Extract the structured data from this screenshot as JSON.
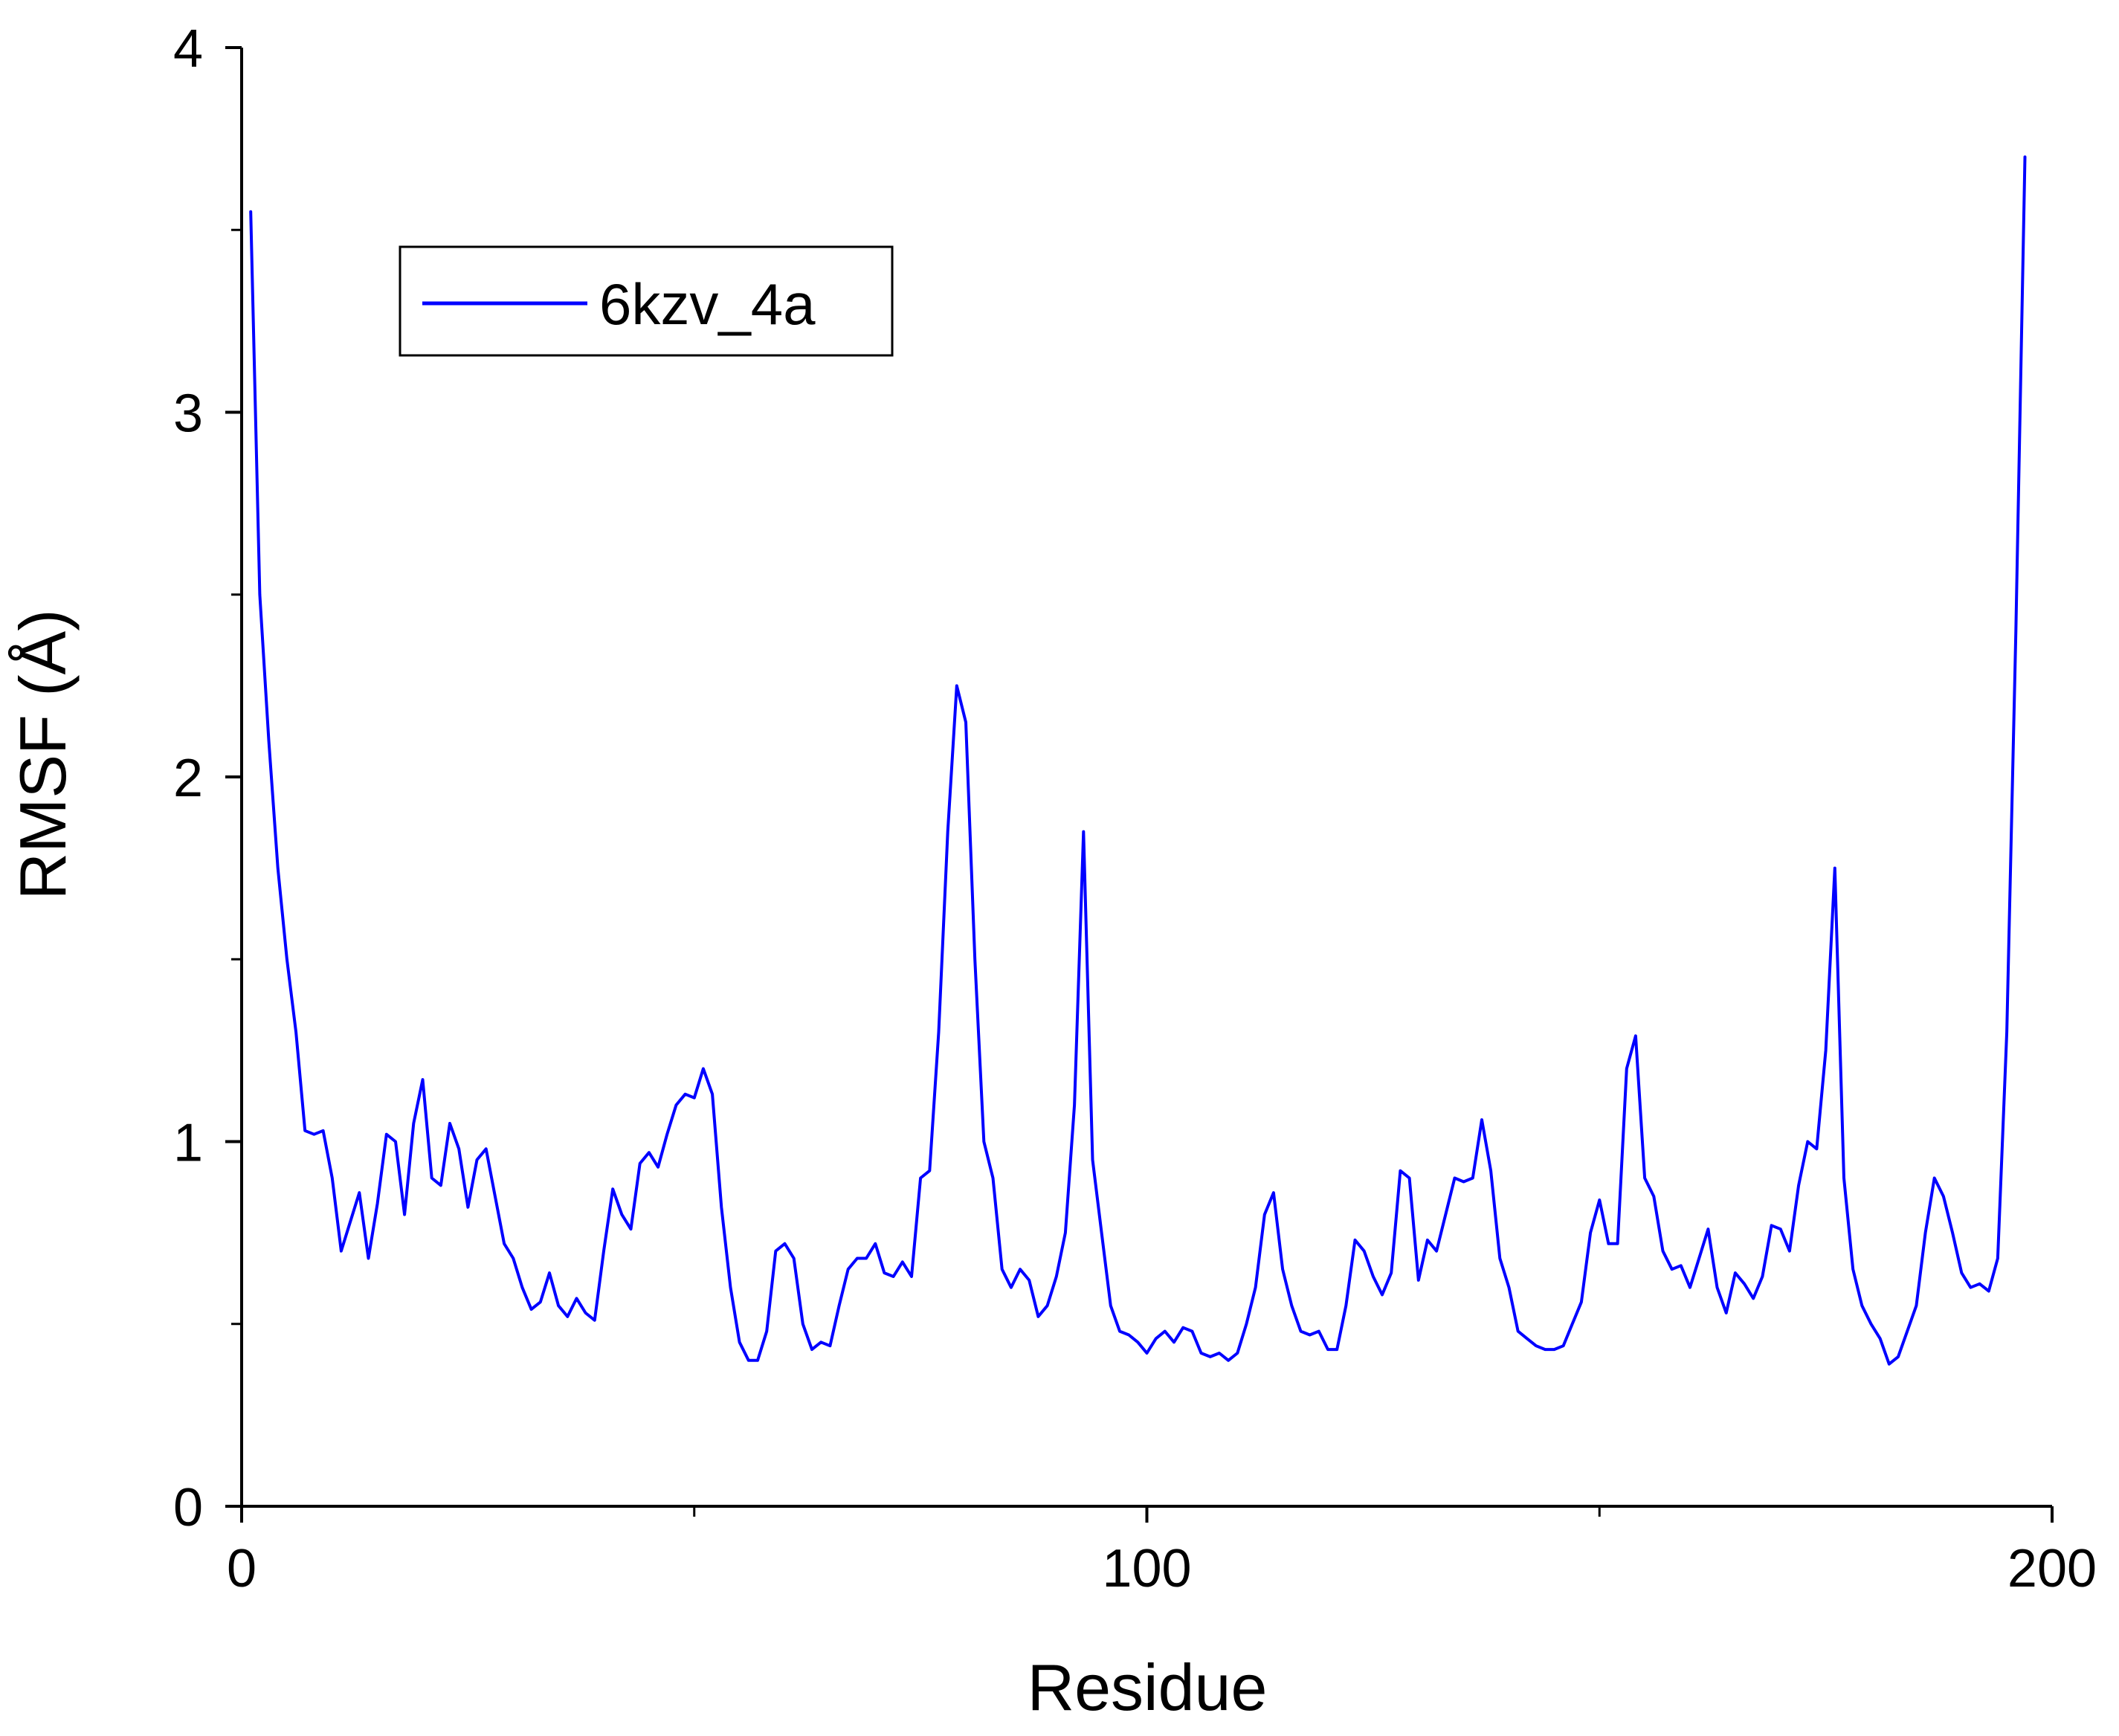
{
  "chart_data": {
    "type": "line",
    "xlabel": "Residue",
    "ylabel": "RMSF (Å)",
    "xlim": [
      0,
      200
    ],
    "ylim": [
      0,
      4
    ],
    "xticks": [
      0,
      100,
      200
    ],
    "xminor": [
      50,
      150
    ],
    "yticks": [
      0,
      1,
      2,
      3,
      4
    ],
    "yminor": [
      0.5,
      1.5,
      2.5,
      3.5
    ],
    "grid": false,
    "legend_position": "top-left",
    "series": [
      {
        "name": "6kzv_4a",
        "color": "#0000ff",
        "points": [
          [
            1,
            3.55
          ],
          [
            2,
            2.5
          ],
          [
            3,
            2.1
          ],
          [
            4,
            1.75
          ],
          [
            5,
            1.5
          ],
          [
            6,
            1.3
          ],
          [
            7,
            1.03
          ],
          [
            8,
            1.02
          ],
          [
            9,
            1.03
          ],
          [
            10,
            0.9
          ],
          [
            11,
            0.7
          ],
          [
            12,
            0.78
          ],
          [
            13,
            0.86
          ],
          [
            14,
            0.68
          ],
          [
            15,
            0.83
          ],
          [
            16,
            1.02
          ],
          [
            17,
            1.0
          ],
          [
            18,
            0.8
          ],
          [
            19,
            1.05
          ],
          [
            20,
            1.17
          ],
          [
            21,
            0.9
          ],
          [
            22,
            0.88
          ],
          [
            23,
            1.05
          ],
          [
            24,
            0.98
          ],
          [
            25,
            0.82
          ],
          [
            26,
            0.95
          ],
          [
            27,
            0.98
          ],
          [
            28,
            0.85
          ],
          [
            29,
            0.72
          ],
          [
            30,
            0.68
          ],
          [
            31,
            0.6
          ],
          [
            32,
            0.54
          ],
          [
            33,
            0.56
          ],
          [
            34,
            0.64
          ],
          [
            35,
            0.55
          ],
          [
            36,
            0.52
          ],
          [
            37,
            0.57
          ],
          [
            38,
            0.53
          ],
          [
            39,
            0.51
          ],
          [
            40,
            0.7
          ],
          [
            41,
            0.87
          ],
          [
            42,
            0.8
          ],
          [
            43,
            0.76
          ],
          [
            44,
            0.94
          ],
          [
            45,
            0.97
          ],
          [
            46,
            0.93
          ],
          [
            47,
            1.02
          ],
          [
            48,
            1.1
          ],
          [
            49,
            1.13
          ],
          [
            50,
            1.12
          ],
          [
            51,
            1.2
          ],
          [
            52,
            1.13
          ],
          [
            53,
            0.82
          ],
          [
            54,
            0.6
          ],
          [
            55,
            0.45
          ],
          [
            56,
            0.4
          ],
          [
            57,
            0.4
          ],
          [
            58,
            0.48
          ],
          [
            59,
            0.7
          ],
          [
            60,
            0.72
          ],
          [
            61,
            0.68
          ],
          [
            62,
            0.5
          ],
          [
            63,
            0.43
          ],
          [
            64,
            0.45
          ],
          [
            65,
            0.44
          ],
          [
            66,
            0.55
          ],
          [
            67,
            0.65
          ],
          [
            68,
            0.68
          ],
          [
            69,
            0.68
          ],
          [
            70,
            0.72
          ],
          [
            71,
            0.64
          ],
          [
            72,
            0.63
          ],
          [
            73,
            0.67
          ],
          [
            74,
            0.63
          ],
          [
            75,
            0.9
          ],
          [
            76,
            0.92
          ],
          [
            77,
            1.3
          ],
          [
            78,
            1.85
          ],
          [
            79,
            2.25
          ],
          [
            80,
            2.15
          ],
          [
            81,
            1.5
          ],
          [
            82,
            1.0
          ],
          [
            83,
            0.9
          ],
          [
            84,
            0.65
          ],
          [
            85,
            0.6
          ],
          [
            86,
            0.65
          ],
          [
            87,
            0.62
          ],
          [
            88,
            0.52
          ],
          [
            89,
            0.55
          ],
          [
            90,
            0.63
          ],
          [
            91,
            0.75
          ],
          [
            92,
            1.1
          ],
          [
            93,
            1.85
          ],
          [
            94,
            0.95
          ],
          [
            95,
            0.75
          ],
          [
            96,
            0.55
          ],
          [
            97,
            0.48
          ],
          [
            98,
            0.47
          ],
          [
            99,
            0.45
          ],
          [
            100,
            0.42
          ],
          [
            101,
            0.46
          ],
          [
            102,
            0.48
          ],
          [
            103,
            0.45
          ],
          [
            104,
            0.49
          ],
          [
            105,
            0.48
          ],
          [
            106,
            0.42
          ],
          [
            107,
            0.41
          ],
          [
            108,
            0.42
          ],
          [
            109,
            0.4
          ],
          [
            110,
            0.42
          ],
          [
            111,
            0.5
          ],
          [
            112,
            0.6
          ],
          [
            113,
            0.8
          ],
          [
            114,
            0.86
          ],
          [
            115,
            0.65
          ],
          [
            116,
            0.55
          ],
          [
            117,
            0.48
          ],
          [
            118,
            0.47
          ],
          [
            119,
            0.48
          ],
          [
            120,
            0.43
          ],
          [
            121,
            0.43
          ],
          [
            122,
            0.55
          ],
          [
            123,
            0.73
          ],
          [
            124,
            0.7
          ],
          [
            125,
            0.63
          ],
          [
            126,
            0.58
          ],
          [
            127,
            0.64
          ],
          [
            128,
            0.92
          ],
          [
            129,
            0.9
          ],
          [
            130,
            0.62
          ],
          [
            131,
            0.73
          ],
          [
            132,
            0.7
          ],
          [
            133,
            0.8
          ],
          [
            134,
            0.9
          ],
          [
            135,
            0.89
          ],
          [
            136,
            0.9
          ],
          [
            137,
            1.06
          ],
          [
            138,
            0.92
          ],
          [
            139,
            0.68
          ],
          [
            140,
            0.6
          ],
          [
            141,
            0.48
          ],
          [
            142,
            0.46
          ],
          [
            143,
            0.44
          ],
          [
            144,
            0.43
          ],
          [
            145,
            0.43
          ],
          [
            146,
            0.44
          ],
          [
            147,
            0.5
          ],
          [
            148,
            0.56
          ],
          [
            149,
            0.75
          ],
          [
            150,
            0.84
          ],
          [
            151,
            0.72
          ],
          [
            152,
            0.72
          ],
          [
            153,
            1.2
          ],
          [
            154,
            1.29
          ],
          [
            155,
            0.9
          ],
          [
            156,
            0.85
          ],
          [
            157,
            0.7
          ],
          [
            158,
            0.65
          ],
          [
            159,
            0.66
          ],
          [
            160,
            0.6
          ],
          [
            161,
            0.68
          ],
          [
            162,
            0.76
          ],
          [
            163,
            0.6
          ],
          [
            164,
            0.53
          ],
          [
            165,
            0.64
          ],
          [
            166,
            0.61
          ],
          [
            167,
            0.57
          ],
          [
            168,
            0.63
          ],
          [
            169,
            0.77
          ],
          [
            170,
            0.76
          ],
          [
            171,
            0.7
          ],
          [
            172,
            0.88
          ],
          [
            173,
            1.0
          ],
          [
            174,
            0.98
          ],
          [
            175,
            1.25
          ],
          [
            176,
            1.75
          ],
          [
            177,
            0.9
          ],
          [
            178,
            0.65
          ],
          [
            179,
            0.55
          ],
          [
            180,
            0.5
          ],
          [
            181,
            0.46
          ],
          [
            182,
            0.39
          ],
          [
            183,
            0.41
          ],
          [
            184,
            0.48
          ],
          [
            185,
            0.55
          ],
          [
            186,
            0.75
          ],
          [
            187,
            0.9
          ],
          [
            188,
            0.85
          ],
          [
            189,
            0.75
          ],
          [
            190,
            0.64
          ],
          [
            191,
            0.6
          ],
          [
            192,
            0.61
          ],
          [
            193,
            0.59
          ],
          [
            194,
            0.68
          ],
          [
            195,
            1.3
          ],
          [
            196,
            2.4
          ],
          [
            197,
            3.7
          ]
        ]
      }
    ]
  }
}
